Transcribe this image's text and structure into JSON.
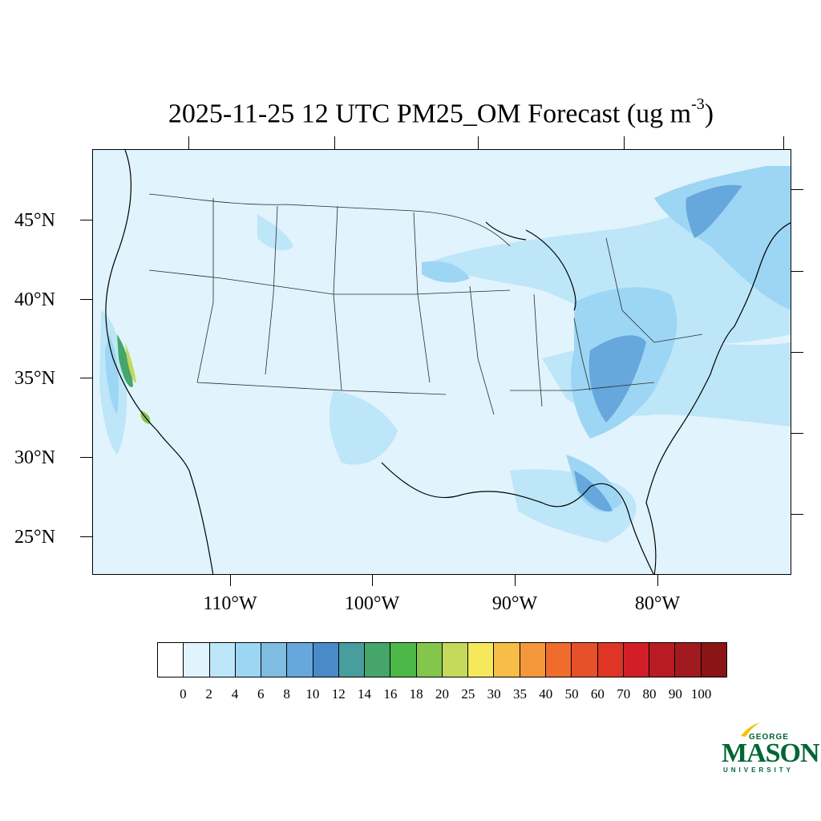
{
  "map": {
    "title": "2025-11-25 12 UTC PM25_OM Forecast (ug m",
    "title_unit_exponent": "-3",
    "title_close": ")",
    "lat_labels": [
      "45°N",
      "40°N",
      "35°N",
      "30°N",
      "25°N"
    ],
    "lon_labels": [
      "110°W",
      "100°W",
      "90°W",
      "80°W"
    ],
    "background_color": "#e1f3fc"
  },
  "colorbar": {
    "labels": [
      "0",
      "2",
      "4",
      "6",
      "8",
      "10",
      "12",
      "14",
      "16",
      "18",
      "20",
      "25",
      "30",
      "35",
      "40",
      "50",
      "60",
      "70",
      "80",
      "90",
      "100"
    ],
    "colors": [
      "#ffffff",
      "#e1f3fc",
      "#bde6f8",
      "#9dd6f4",
      "#80bde3",
      "#66a7dc",
      "#4a8ac8",
      "#479e9c",
      "#45a56a",
      "#4cb848",
      "#84c54c",
      "#c5d95a",
      "#f6e85b",
      "#f7bd46",
      "#f4973b",
      "#f06c2c",
      "#e75129",
      "#de3525",
      "#d21f27",
      "#b81b23",
      "#a11a1f",
      "#8a1416"
    ]
  },
  "logo": {
    "line1": "GEORGE",
    "line2": "MASON",
    "line3": "UNIVERSITY",
    "color": "#006633",
    "accent": "#f2c200"
  }
}
